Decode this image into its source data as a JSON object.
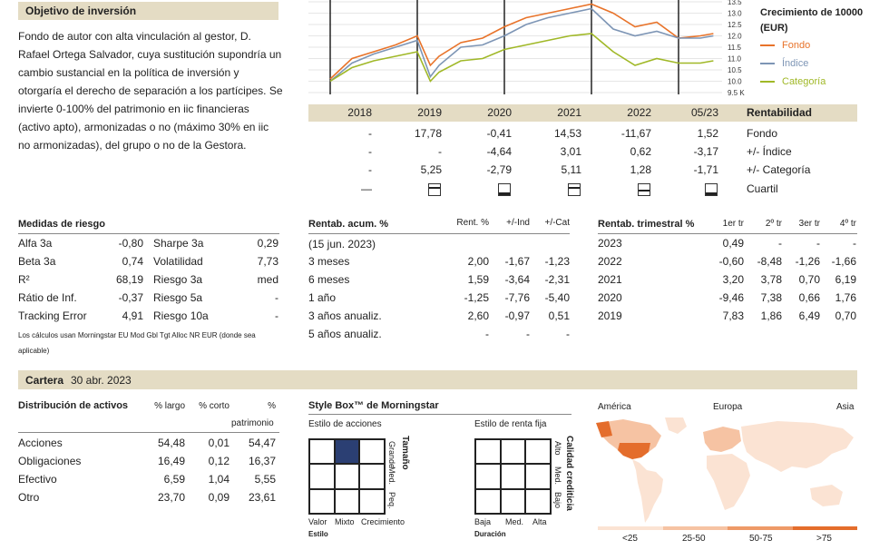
{
  "objective": {
    "title": "Objetivo de inversión",
    "text": "Fondo de autor con alta vinculación al gestor, D. Rafael Ortega Salvador, cuya sustitución supondría un cambio sustancial en la política de inversión y otorgaría el derecho de separación a los partícipes. Se invierte 0-100% del patrimonio en iic financieras (activo apto), armonizadas o no (máximo 30% en iic no armonizadas), del grupo o no de la Gestora."
  },
  "growth_chart": {
    "legend_title": "Crecimiento de 10000 (EUR)",
    "legend": [
      {
        "label": "Fondo",
        "color": "#e8732a"
      },
      {
        "label": "Índice",
        "color": "#7d95b5"
      },
      {
        "label": "Categoría",
        "color": "#a0b827"
      }
    ],
    "y_ticks": [
      "13.5",
      "13.0",
      "12.5",
      "12.0",
      "11.5",
      "11.0",
      "10.5",
      "10.0",
      "9.5 K"
    ]
  },
  "chart_data": {
    "type": "line",
    "title": "Crecimiento de 10000 (EUR)",
    "ylim": [
      9.5,
      13.5
    ],
    "x": [
      2019.0,
      2019.25,
      2019.5,
      2019.75,
      2020.0,
      2020.15,
      2020.25,
      2020.5,
      2020.75,
      2021.0,
      2021.25,
      2021.5,
      2021.75,
      2022.0,
      2022.25,
      2022.5,
      2022.75,
      2023.0,
      2023.25,
      2023.4
    ],
    "series": [
      {
        "name": "Fondo",
        "values": [
          10.1,
          11.0,
          11.3,
          11.6,
          12.0,
          10.7,
          11.1,
          11.7,
          11.9,
          12.4,
          12.8,
          13.0,
          13.2,
          13.4,
          13.0,
          12.4,
          12.6,
          11.9,
          12.0,
          12.1
        ]
      },
      {
        "name": "Índice",
        "values": [
          10.0,
          10.8,
          11.2,
          11.5,
          11.8,
          10.2,
          10.7,
          11.5,
          11.6,
          12.0,
          12.5,
          12.8,
          13.0,
          13.2,
          12.3,
          12.0,
          12.2,
          11.9,
          11.9,
          12.0
        ]
      },
      {
        "name": "Categoría",
        "values": [
          10.0,
          10.6,
          10.9,
          11.1,
          11.3,
          10.0,
          10.4,
          10.9,
          11.0,
          11.4,
          11.6,
          11.8,
          12.0,
          12.1,
          11.3,
          10.7,
          11.0,
          10.8,
          10.8,
          10.9
        ]
      }
    ]
  },
  "returns_table": {
    "years": [
      "2018",
      "2019",
      "2020",
      "2021",
      "2022",
      "05/23"
    ],
    "header_label": "Rentabilidad",
    "rows": [
      {
        "label": "Fondo",
        "values": [
          "-",
          "17,78",
          "-0,41",
          "14,53",
          "-11,67",
          "1,52"
        ]
      },
      {
        "label": "+/- Índice",
        "values": [
          "-",
          "-",
          "-4,64",
          "3,01",
          "0,62",
          "-3,17"
        ]
      },
      {
        "label": "+/- Categoría",
        "values": [
          "-",
          "5,25",
          "-2,79",
          "5,11",
          "1,28",
          "-1,71"
        ]
      }
    ],
    "quartile_label": "Cuartil",
    "quartile_first": "—",
    "quartiles": [
      2,
      4,
      2,
      3,
      4
    ]
  },
  "risk": {
    "title": "Medidas de riesgo",
    "left": [
      {
        "label": "Alfa 3a",
        "value": "-0,80"
      },
      {
        "label": "Beta 3a",
        "value": "0,74"
      },
      {
        "label": "R²",
        "value": "68,19"
      },
      {
        "label": "Rátio de Inf.",
        "value": "-0,37"
      },
      {
        "label": "Tracking Error",
        "value": "4,91"
      }
    ],
    "right": [
      {
        "label": "Sharpe 3a",
        "value": "0,29"
      },
      {
        "label": "Volatilidad",
        "value": "7,73"
      },
      {
        "label": "Riesgo 3a",
        "value": "med"
      },
      {
        "label": "Riesgo 5a",
        "value": "-"
      },
      {
        "label": "Riesgo 10a",
        "value": "-"
      }
    ],
    "footnote": "Los cálculos usan Morningstar EU Mod Gbl Tgt Alloc NR EUR (donde sea aplicable)"
  },
  "cumulative": {
    "title": "Rentab. acum. %",
    "cols": [
      "Rent. %",
      "+/-Ind",
      "+/-Cat"
    ],
    "date": "(15 jun. 2023)",
    "rows": [
      {
        "label": "3 meses",
        "values": [
          "2,00",
          "-1,67",
          "-1,23"
        ]
      },
      {
        "label": "6 meses",
        "values": [
          "1,59",
          "-3,64",
          "-2,31"
        ]
      },
      {
        "label": "1 año",
        "values": [
          "-1,25",
          "-7,76",
          "-5,40"
        ]
      },
      {
        "label": "3 años anualiz.",
        "values": [
          "2,60",
          "-0,97",
          "0,51"
        ]
      },
      {
        "label": "5 años anualiz.",
        "values": [
          "-",
          "-",
          "-"
        ]
      }
    ]
  },
  "quarterly": {
    "title": "Rentab. trimestral %",
    "cols": [
      "1er tr",
      "2º tr",
      "3er tr",
      "4º tr"
    ],
    "rows": [
      {
        "label": "2023",
        "values": [
          "0,49",
          "-",
          "-",
          "-"
        ]
      },
      {
        "label": "2022",
        "values": [
          "-0,60",
          "-8,48",
          "-1,26",
          "-1,66"
        ]
      },
      {
        "label": "2021",
        "values": [
          "3,20",
          "3,78",
          "0,70",
          "6,19"
        ]
      },
      {
        "label": "2020",
        "values": [
          "-9,46",
          "7,38",
          "0,66",
          "1,76"
        ]
      },
      {
        "label": "2019",
        "values": [
          "7,83",
          "1,86",
          "6,49",
          "0,70"
        ]
      }
    ]
  },
  "portfolio": {
    "title": "Cartera",
    "date": "30 abr. 2023",
    "assets_title": "Distribución de activos",
    "cols": [
      "% largo",
      "% corto",
      "%"
    ],
    "col3_sub": "patrimonio",
    "rows": [
      {
        "label": "Acciones",
        "values": [
          "54,48",
          "0,01",
          "54,47"
        ]
      },
      {
        "label": "Obligaciones",
        "values": [
          "16,49",
          "0,12",
          "16,37"
        ]
      },
      {
        "label": "Efectivo",
        "values": [
          "6,59",
          "1,04",
          "5,55"
        ]
      },
      {
        "label": "Otro",
        "values": [
          "23,70",
          "0,09",
          "23,61"
        ]
      }
    ]
  },
  "stylebox": {
    "title": "Style Box™ de Morningstar",
    "equity_label": "Estilo de acciones",
    "equity_side_title": "Tamaño",
    "equity_side": [
      "Grande",
      "Med.",
      "Peq."
    ],
    "equity_bottom": [
      "Valor",
      "Mixto",
      "Crecimiento"
    ],
    "equity_axis": "Estilo",
    "equity_selected": 1,
    "fixed_label": "Estilo de renta fija",
    "fixed_side_title": "Calidad crediticia",
    "fixed_side": [
      "Alto",
      "Med.",
      "Bajo"
    ],
    "fixed_bottom": [
      "Baja",
      "Med.",
      "Alta"
    ],
    "fixed_axis": "Duración"
  },
  "map": {
    "regions": [
      "América",
      "Europa",
      "Asia"
    ],
    "scale": [
      "<25",
      "25-50",
      "50-75",
      ">75"
    ],
    "scale_colors": [
      "#fbe3d3",
      "#f6c3a3",
      "#ee9a68",
      "#e46d2c"
    ]
  }
}
